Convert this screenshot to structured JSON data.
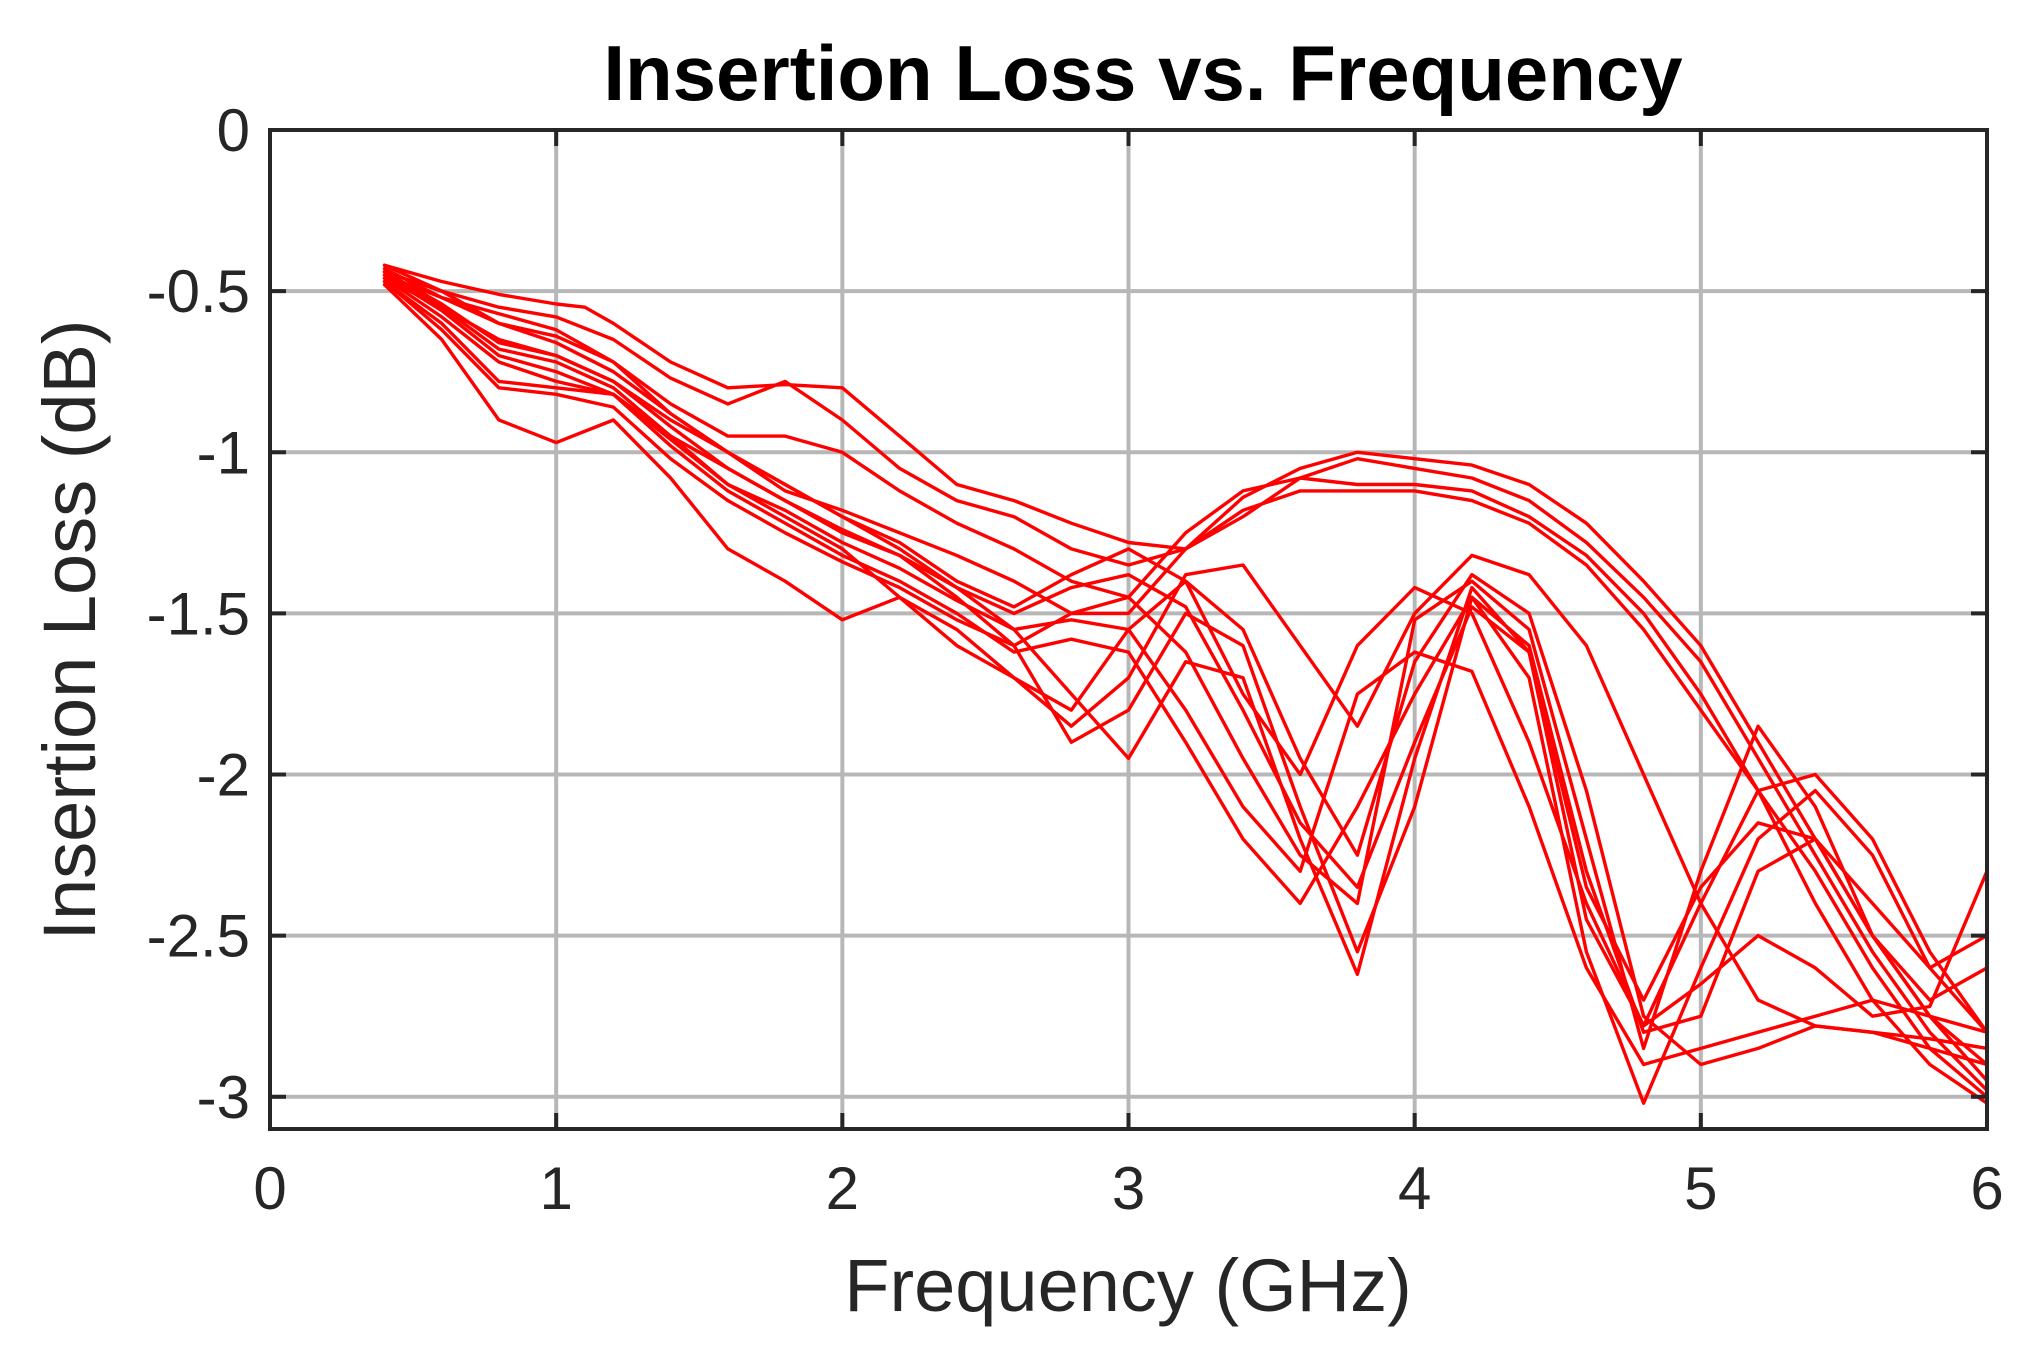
{
  "chart_data": {
    "type": "line",
    "title": "Insertion Loss vs. Frequency",
    "xlabel": "Frequency (GHz)",
    "ylabel": "Insertion Loss (dB)",
    "xlim": [
      0,
      6
    ],
    "ylim": [
      -3.1,
      0
    ],
    "xticks": [
      0,
      1,
      2,
      3,
      4,
      5,
      6
    ],
    "yticks": [
      0,
      -0.5,
      -1,
      -1.5,
      -2,
      -2.5,
      -3
    ],
    "xtick_labels": [
      "0",
      "1",
      "2",
      "3",
      "4",
      "5",
      "6"
    ],
    "ytick_labels": [
      "0",
      "-0.5",
      "-1",
      "-1.5",
      "-2",
      "-2.5",
      "-3"
    ],
    "grid": true,
    "color": "#ff0000",
    "series": [
      {
        "x": [
          0.4,
          0.6,
          0.8,
          1.0,
          1.1,
          1.2,
          1.4,
          1.6,
          1.8,
          2.0,
          2.2,
          2.4,
          2.6,
          2.8,
          3.0,
          3.2,
          3.4,
          3.6,
          3.8,
          4.0,
          4.2,
          4.4,
          4.6,
          4.8,
          5.0,
          5.2,
          5.4,
          5.6,
          5.8,
          6.0
        ],
        "y": [
          -0.42,
          -0.47,
          -0.51,
          -0.54,
          -0.55,
          -0.6,
          -0.72,
          -0.8,
          -0.79,
          -0.8,
          -0.95,
          -1.1,
          -1.15,
          -1.22,
          -1.28,
          -1.3,
          -1.14,
          -1.05,
          -1.0,
          -1.02,
          -1.04,
          -1.1,
          -1.22,
          -1.4,
          -1.6,
          -1.9,
          -2.2,
          -2.5,
          -2.75,
          -2.95
        ]
      },
      {
        "x": [
          0.4,
          0.6,
          0.8,
          1.0,
          1.2,
          1.4,
          1.6,
          1.8,
          2.0,
          2.2,
          2.4,
          2.6,
          2.8,
          3.0,
          3.2,
          3.4,
          3.6,
          3.8,
          4.0,
          4.2,
          4.4,
          4.6,
          4.8,
          5.0,
          5.2,
          5.4,
          5.6,
          5.8,
          6.0
        ],
        "y": [
          -0.44,
          -0.5,
          -0.55,
          -0.58,
          -0.65,
          -0.77,
          -0.85,
          -0.78,
          -0.9,
          -1.05,
          -1.15,
          -1.2,
          -1.3,
          -1.35,
          -1.3,
          -1.2,
          -1.08,
          -1.02,
          -1.05,
          -1.08,
          -1.15,
          -1.28,
          -1.45,
          -1.65,
          -1.95,
          -2.25,
          -2.55,
          -2.8,
          -2.98
        ]
      },
      {
        "x": [
          0.4,
          0.6,
          0.8,
          1.0,
          1.2,
          1.4,
          1.6,
          1.8,
          2.0,
          2.2,
          2.4,
          2.6,
          2.8,
          3.0,
          3.2,
          3.4,
          3.6,
          3.8,
          4.0,
          4.2,
          4.4,
          4.6,
          4.8,
          5.0,
          5.2,
          5.4,
          5.6,
          5.8,
          6.0
        ],
        "y": [
          -0.45,
          -0.52,
          -0.57,
          -0.62,
          -0.72,
          -0.85,
          -0.95,
          -0.95,
          -1.0,
          -1.12,
          -1.22,
          -1.3,
          -1.4,
          -1.45,
          -1.25,
          -1.12,
          -1.08,
          -1.1,
          -1.1,
          -1.12,
          -1.2,
          -1.32,
          -1.5,
          -1.75,
          -2.05,
          -2.3,
          -2.6,
          -2.85,
          -3.0
        ]
      },
      {
        "x": [
          0.4,
          0.6,
          0.8,
          1.0,
          1.2,
          1.4,
          1.6,
          1.8,
          2.0,
          2.2,
          2.4,
          2.6,
          2.8,
          3.0,
          3.2,
          3.4,
          3.6,
          3.8,
          4.0,
          4.2,
          4.4,
          4.6,
          4.8,
          5.0,
          5.2,
          5.4,
          5.6,
          5.8,
          6.0
        ],
        "y": [
          -0.46,
          -0.55,
          -0.65,
          -0.7,
          -0.78,
          -0.9,
          -1.0,
          -1.12,
          -1.18,
          -1.25,
          -1.32,
          -1.4,
          -1.5,
          -1.5,
          -1.3,
          -1.18,
          -1.12,
          -1.12,
          -1.12,
          -1.15,
          -1.22,
          -1.35,
          -1.55,
          -1.8,
          -2.05,
          -2.4,
          -2.7,
          -2.9,
          -3.02
        ]
      },
      {
        "x": [
          0.4,
          0.6,
          0.8,
          1.0,
          1.2,
          1.4,
          1.6,
          1.8,
          2.0,
          2.2,
          2.4,
          2.6,
          2.8,
          3.0,
          3.2,
          3.4,
          3.6,
          3.8,
          4.0,
          4.2,
          4.4,
          4.6,
          4.8,
          5.0,
          5.2,
          5.4,
          5.6,
          5.8,
          6.0
        ],
        "y": [
          -0.47,
          -0.6,
          -0.78,
          -0.8,
          -0.82,
          -0.95,
          -1.1,
          -1.2,
          -1.3,
          -1.45,
          -1.6,
          -1.7,
          -1.85,
          -1.7,
          -1.38,
          -1.35,
          -1.6,
          -1.85,
          -1.5,
          -1.32,
          -1.38,
          -1.6,
          -2.0,
          -2.4,
          -2.7,
          -2.78,
          -2.8,
          -2.82,
          -2.85
        ]
      },
      {
        "x": [
          0.4,
          0.6,
          0.8,
          1.0,
          1.2,
          1.4,
          1.6,
          1.8,
          2.0,
          2.2,
          2.4,
          2.6,
          2.8,
          3.0,
          3.2,
          3.4,
          3.6,
          3.8,
          4.0,
          4.2,
          4.4,
          4.6,
          4.8,
          5.0,
          5.2,
          5.4,
          5.6,
          5.8,
          6.0
        ],
        "y": [
          -0.48,
          -0.65,
          -0.9,
          -0.97,
          -0.9,
          -1.08,
          -1.3,
          -1.4,
          -1.52,
          -1.45,
          -1.55,
          -1.7,
          -1.8,
          -1.55,
          -1.4,
          -1.55,
          -1.95,
          -2.25,
          -1.65,
          -1.38,
          -1.5,
          -2.05,
          -2.75,
          -2.9,
          -2.85,
          -2.78,
          -2.8,
          -2.85,
          -2.9
        ]
      },
      {
        "x": [
          0.4,
          0.6,
          0.8,
          1.0,
          1.2,
          1.4,
          1.6,
          1.8,
          2.0,
          2.2,
          2.4,
          2.6,
          2.8,
          3.0,
          3.2,
          3.4,
          3.6,
          3.8,
          4.0,
          4.2,
          4.4,
          4.6,
          4.8,
          5.0,
          5.2,
          5.4,
          5.6,
          5.8,
          6.0
        ],
        "y": [
          -0.44,
          -0.55,
          -0.68,
          -0.72,
          -0.8,
          -0.95,
          -1.05,
          -1.15,
          -1.25,
          -1.32,
          -1.45,
          -1.6,
          -1.9,
          -1.8,
          -1.5,
          -1.6,
          -2.1,
          -2.55,
          -2.1,
          -1.45,
          -1.6,
          -2.3,
          -2.8,
          -2.75,
          -2.3,
          -2.2,
          -2.5,
          -2.75,
          -2.9
        ]
      },
      {
        "x": [
          0.4,
          0.6,
          0.8,
          1.0,
          1.2,
          1.4,
          1.6,
          1.8,
          2.0,
          2.2,
          2.4,
          2.6,
          2.8,
          3.0,
          3.2,
          3.4,
          3.6,
          3.8,
          4.0,
          4.2,
          4.4,
          4.6,
          4.8,
          5.0,
          5.2,
          5.4,
          5.6,
          5.8,
          6.0
        ],
        "y": [
          -0.43,
          -0.52,
          -0.6,
          -0.66,
          -0.75,
          -0.88,
          -1.0,
          -1.1,
          -1.2,
          -1.3,
          -1.42,
          -1.55,
          -1.75,
          -1.95,
          -1.65,
          -1.7,
          -2.2,
          -2.62,
          -1.95,
          -1.42,
          -1.62,
          -2.45,
          -2.78,
          -2.4,
          -2.05,
          -2.0,
          -2.2,
          -2.55,
          -2.8
        ]
      },
      {
        "x": [
          0.4,
          0.6,
          0.8,
          1.0,
          1.2,
          1.4,
          1.6,
          1.8,
          2.0,
          2.2,
          2.4,
          2.6,
          2.8,
          3.0,
          3.2,
          3.4,
          3.6,
          3.8,
          4.0,
          4.2,
          4.4,
          4.6,
          4.8,
          5.0,
          5.2,
          5.4,
          5.6,
          5.8,
          6.0
        ],
        "y": [
          -0.46,
          -0.58,
          -0.72,
          -0.78,
          -0.82,
          -0.98,
          -1.12,
          -1.22,
          -1.32,
          -1.4,
          -1.5,
          -1.62,
          -1.58,
          -1.62,
          -1.9,
          -2.2,
          -2.4,
          -2.1,
          -1.75,
          -1.45,
          -1.7,
          -2.55,
          -3.02,
          -2.6,
          -2.2,
          -2.05,
          -2.25,
          -2.6,
          -2.8
        ]
      },
      {
        "x": [
          0.4,
          0.6,
          0.8,
          1.0,
          1.2,
          1.4,
          1.6,
          1.8,
          2.0,
          2.2,
          2.4,
          2.6,
          2.8,
          3.0,
          3.2,
          3.4,
          3.6,
          3.8,
          4.0,
          4.2,
          4.4,
          4.6,
          4.8,
          5.0,
          5.2,
          5.4,
          5.6,
          5.8,
          6.0
        ],
        "y": [
          -0.45,
          -0.56,
          -0.7,
          -0.75,
          -0.82,
          -0.96,
          -1.1,
          -1.18,
          -1.28,
          -1.36,
          -1.46,
          -1.55,
          -1.52,
          -1.55,
          -1.8,
          -2.1,
          -2.3,
          -1.75,
          -1.62,
          -1.68,
          -2.1,
          -2.6,
          -2.9,
          -2.85,
          -2.8,
          -2.75,
          -2.7,
          -2.75,
          -2.8
        ]
      },
      {
        "x": [
          0.4,
          0.6,
          0.8,
          1.0,
          1.2,
          1.4,
          1.6,
          1.8,
          2.0,
          2.2,
          2.4,
          2.6,
          2.8,
          3.0,
          3.2,
          3.4,
          3.6,
          3.8,
          4.0,
          4.2,
          4.4,
          4.6,
          4.8,
          5.0,
          5.2,
          5.4,
          5.6,
          5.8,
          6.0
        ],
        "y": [
          -0.47,
          -0.62,
          -0.8,
          -0.82,
          -0.86,
          -1.02,
          -1.15,
          -1.25,
          -1.34,
          -1.42,
          -1.52,
          -1.6,
          -1.5,
          -1.45,
          -1.62,
          -1.95,
          -2.25,
          -2.4,
          -1.52,
          -1.4,
          -1.55,
          -2.2,
          -2.85,
          -2.3,
          -1.85,
          -2.1,
          -2.5,
          -2.7,
          -2.6
        ]
      },
      {
        "x": [
          0.4,
          0.6,
          0.8,
          1.0,
          1.2,
          1.4,
          1.6,
          1.8,
          2.0,
          2.2,
          2.4,
          2.6,
          2.8,
          3.0,
          3.2,
          3.4,
          3.6,
          3.8,
          4.0,
          4.2,
          4.4,
          4.6,
          4.8,
          5.0,
          5.2,
          5.4,
          5.6,
          5.8,
          6.0
        ],
        "y": [
          -0.44,
          -0.54,
          -0.66,
          -0.7,
          -0.78,
          -0.92,
          -1.05,
          -1.15,
          -1.24,
          -1.32,
          -1.42,
          -1.5,
          -1.42,
          -1.38,
          -1.48,
          -1.8,
          -2.15,
          -2.35,
          -1.9,
          -1.48,
          -1.62,
          -2.35,
          -2.7,
          -2.35,
          -2.15,
          -2.2,
          -2.4,
          -2.6,
          -2.5
        ]
      },
      {
        "x": [
          0.4,
          0.6,
          0.8,
          1.0,
          1.2,
          1.4,
          1.6,
          1.8,
          2.0,
          2.2,
          2.4,
          2.6,
          2.8,
          3.0,
          3.2,
          3.4,
          3.6,
          3.8,
          4.0,
          4.2,
          4.4,
          4.6,
          4.8,
          5.0,
          5.2,
          5.4,
          5.6,
          5.8,
          6.0
        ],
        "y": [
          -0.42,
          -0.5,
          -0.6,
          -0.64,
          -0.72,
          -0.88,
          -1.0,
          -1.1,
          -1.2,
          -1.28,
          -1.4,
          -1.48,
          -1.38,
          -1.3,
          -1.4,
          -1.75,
          -2.0,
          -1.6,
          -1.42,
          -1.5,
          -1.9,
          -2.4,
          -2.78,
          -2.65,
          -2.5,
          -2.6,
          -2.75,
          -2.72,
          -2.3
        ]
      }
    ]
  }
}
